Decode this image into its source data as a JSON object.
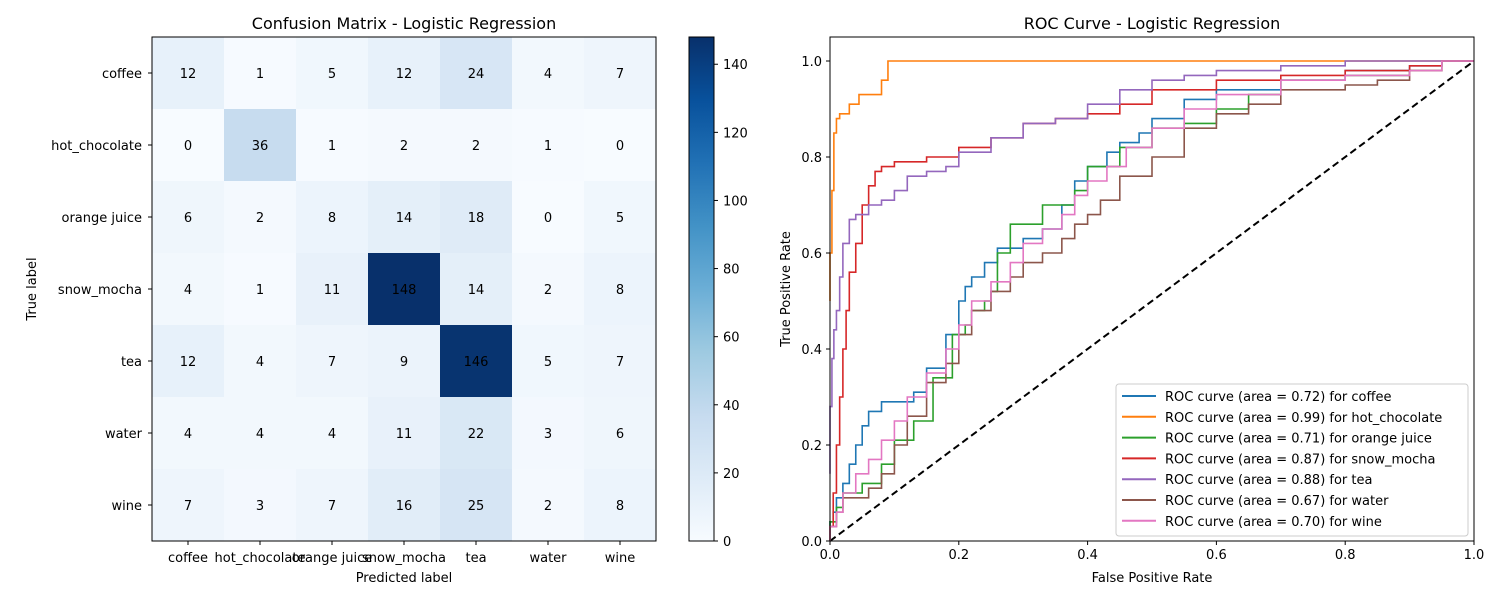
{
  "chart_data": [
    {
      "type": "heatmap",
      "title": "Confusion Matrix - Logistic Regression",
      "xlabel": "Predicted label",
      "ylabel": "True label",
      "x_categories": [
        "coffee",
        "hot_chocolate",
        "orange juice",
        "snow_mocha",
        "tea",
        "water",
        "wine"
      ],
      "y_categories": [
        "coffee",
        "hot_chocolate",
        "orange juice",
        "snow_mocha",
        "tea",
        "water",
        "wine"
      ],
      "matrix": [
        [
          12,
          1,
          5,
          12,
          24,
          4,
          7
        ],
        [
          0,
          36,
          1,
          2,
          2,
          1,
          0
        ],
        [
          6,
          2,
          8,
          14,
          18,
          0,
          5
        ],
        [
          4,
          1,
          11,
          148,
          14,
          2,
          8
        ],
        [
          12,
          4,
          7,
          9,
          146,
          5,
          7
        ],
        [
          4,
          4,
          4,
          11,
          22,
          3,
          6
        ],
        [
          7,
          3,
          7,
          16,
          25,
          2,
          8
        ]
      ],
      "colormap": "Blues",
      "color_range": [
        0,
        148
      ],
      "colorbar_ticks": [
        0,
        20,
        40,
        60,
        80,
        100,
        120,
        140
      ]
    },
    {
      "type": "line",
      "title": "ROC Curve - Logistic Regression",
      "xlabel": "False Positive Rate",
      "ylabel": "True Positive Rate",
      "xlim": [
        0,
        1
      ],
      "ylim": [
        0,
        1.05
      ],
      "x_ticks": [
        "0.0",
        "0.2",
        "0.4",
        "0.6",
        "0.8",
        "1.0"
      ],
      "y_ticks": [
        "0.0",
        "0.2",
        "0.4",
        "0.6",
        "0.8",
        "1.0"
      ],
      "legend_position": "lower-right",
      "diagonal": {
        "style": "dashed",
        "color": "#000000",
        "points": [
          [
            0,
            0
          ],
          [
            1,
            1
          ]
        ]
      },
      "series": [
        {
          "name": "ROC curve (area = 0.72) for coffee",
          "color": "#1f77b4",
          "points": [
            [
              0,
              0
            ],
            [
              0.005,
              0.04
            ],
            [
              0.01,
              0.06
            ],
            [
              0.02,
              0.09
            ],
            [
              0.03,
              0.12
            ],
            [
              0.04,
              0.16
            ],
            [
              0.05,
              0.2
            ],
            [
              0.06,
              0.24
            ],
            [
              0.08,
              0.27
            ],
            [
              0.1,
              0.29
            ],
            [
              0.13,
              0.29
            ],
            [
              0.15,
              0.31
            ],
            [
              0.18,
              0.36
            ],
            [
              0.2,
              0.43
            ],
            [
              0.21,
              0.5
            ],
            [
              0.22,
              0.53
            ],
            [
              0.24,
              0.55
            ],
            [
              0.26,
              0.58
            ],
            [
              0.3,
              0.61
            ],
            [
              0.33,
              0.63
            ],
            [
              0.36,
              0.65
            ],
            [
              0.38,
              0.7
            ],
            [
              0.4,
              0.75
            ],
            [
              0.43,
              0.78
            ],
            [
              0.45,
              0.81
            ],
            [
              0.48,
              0.83
            ],
            [
              0.5,
              0.85
            ],
            [
              0.55,
              0.88
            ],
            [
              0.6,
              0.92
            ],
            [
              0.7,
              0.94
            ],
            [
              0.8,
              0.96
            ],
            [
              0.9,
              0.98
            ],
            [
              0.95,
              0.99
            ],
            [
              1,
              1
            ]
          ]
        },
        {
          "name": "ROC curve (area = 0.99) for hot_chocolate",
          "color": "#ff7f0e",
          "points": [
            [
              0,
              0.5
            ],
            [
              0.003,
              0.6
            ],
            [
              0.006,
              0.73
            ],
            [
              0.01,
              0.85
            ],
            [
              0.015,
              0.88
            ],
            [
              0.03,
              0.89
            ],
            [
              0.045,
              0.91
            ],
            [
              0.05,
              0.93
            ],
            [
              0.08,
              0.93
            ],
            [
              0.09,
              0.96
            ],
            [
              0.1,
              1
            ],
            [
              0.2,
              1
            ],
            [
              0.4,
              1
            ],
            [
              0.6,
              1
            ],
            [
              0.8,
              1
            ],
            [
              1,
              1
            ]
          ]
        },
        {
          "name": "ROC curve (area = 0.71) for orange juice",
          "color": "#2ca02c",
          "points": [
            [
              0,
              0
            ],
            [
              0.01,
              0.04
            ],
            [
              0.02,
              0.07
            ],
            [
              0.03,
              0.1
            ],
            [
              0.05,
              0.1
            ],
            [
              0.08,
              0.12
            ],
            [
              0.1,
              0.16
            ],
            [
              0.13,
              0.21
            ],
            [
              0.16,
              0.25
            ],
            [
              0.19,
              0.34
            ],
            [
              0.21,
              0.43
            ],
            [
              0.22,
              0.45
            ],
            [
              0.24,
              0.48
            ],
            [
              0.25,
              0.5
            ],
            [
              0.26,
              0.52
            ],
            [
              0.28,
              0.6
            ],
            [
              0.3,
              0.66
            ],
            [
              0.33,
              0.66
            ],
            [
              0.35,
              0.7
            ],
            [
              0.38,
              0.7
            ],
            [
              0.4,
              0.73
            ],
            [
              0.45,
              0.78
            ],
            [
              0.5,
              0.82
            ],
            [
              0.55,
              0.86
            ],
            [
              0.6,
              0.87
            ],
            [
              0.65,
              0.9
            ],
            [
              0.7,
              0.93
            ],
            [
              0.8,
              0.96
            ],
            [
              0.9,
              0.97
            ],
            [
              0.95,
              0.98
            ],
            [
              1,
              1
            ]
          ]
        },
        {
          "name": "ROC curve (area = 0.87) for snow_mocha",
          "color": "#d62728",
          "points": [
            [
              0,
              0
            ],
            [
              0.005,
              0.03
            ],
            [
              0.01,
              0.1
            ],
            [
              0.015,
              0.2
            ],
            [
              0.02,
              0.3
            ],
            [
              0.025,
              0.4
            ],
            [
              0.03,
              0.48
            ],
            [
              0.04,
              0.56
            ],
            [
              0.05,
              0.62
            ],
            [
              0.06,
              0.7
            ],
            [
              0.07,
              0.74
            ],
            [
              0.08,
              0.77
            ],
            [
              0.1,
              0.78
            ],
            [
              0.15,
              0.79
            ],
            [
              0.2,
              0.8
            ],
            [
              0.25,
              0.82
            ],
            [
              0.3,
              0.84
            ],
            [
              0.35,
              0.87
            ],
            [
              0.4,
              0.88
            ],
            [
              0.45,
              0.89
            ],
            [
              0.5,
              0.91
            ],
            [
              0.6,
              0.94
            ],
            [
              0.7,
              0.96
            ],
            [
              0.8,
              0.97
            ],
            [
              0.9,
              0.98
            ],
            [
              0.95,
              0.99
            ],
            [
              1,
              1
            ]
          ]
        },
        {
          "name": "ROC curve (area = 0.88) for tea",
          "color": "#9467bd",
          "points": [
            [
              0,
              0.14
            ],
            [
              0.003,
              0.28
            ],
            [
              0.006,
              0.38
            ],
            [
              0.01,
              0.44
            ],
            [
              0.015,
              0.48
            ],
            [
              0.02,
              0.55
            ],
            [
              0.03,
              0.62
            ],
            [
              0.04,
              0.67
            ],
            [
              0.06,
              0.68
            ],
            [
              0.08,
              0.7
            ],
            [
              0.1,
              0.71
            ],
            [
              0.12,
              0.73
            ],
            [
              0.15,
              0.76
            ],
            [
              0.18,
              0.77
            ],
            [
              0.2,
              0.78
            ],
            [
              0.25,
              0.81
            ],
            [
              0.3,
              0.84
            ],
            [
              0.35,
              0.87
            ],
            [
              0.4,
              0.88
            ],
            [
              0.45,
              0.91
            ],
            [
              0.5,
              0.94
            ],
            [
              0.55,
              0.96
            ],
            [
              0.6,
              0.97
            ],
            [
              0.7,
              0.98
            ],
            [
              0.8,
              0.99
            ],
            [
              0.9,
              1
            ],
            [
              1,
              1
            ]
          ]
        },
        {
          "name": "ROC curve (area = 0.67) for water",
          "color": "#8c564b",
          "points": [
            [
              0,
              0
            ],
            [
              0.01,
              0.03
            ],
            [
              0.02,
              0.06
            ],
            [
              0.04,
              0.09
            ],
            [
              0.06,
              0.09
            ],
            [
              0.08,
              0.11
            ],
            [
              0.1,
              0.14
            ],
            [
              0.12,
              0.2
            ],
            [
              0.15,
              0.26
            ],
            [
              0.18,
              0.33
            ],
            [
              0.2,
              0.37
            ],
            [
              0.22,
              0.43
            ],
            [
              0.25,
              0.48
            ],
            [
              0.28,
              0.52
            ],
            [
              0.3,
              0.55
            ],
            [
              0.33,
              0.58
            ],
            [
              0.36,
              0.6
            ],
            [
              0.38,
              0.63
            ],
            [
              0.4,
              0.66
            ],
            [
              0.42,
              0.68
            ],
            [
              0.45,
              0.71
            ],
            [
              0.5,
              0.76
            ],
            [
              0.55,
              0.8
            ],
            [
              0.6,
              0.86
            ],
            [
              0.65,
              0.89
            ],
            [
              0.7,
              0.91
            ],
            [
              0.8,
              0.94
            ],
            [
              0.85,
              0.95
            ],
            [
              0.9,
              0.96
            ],
            [
              0.95,
              0.98
            ],
            [
              1,
              1
            ]
          ]
        },
        {
          "name": "ROC curve (area = 0.70) for wine",
          "color": "#e377c2",
          "points": [
            [
              0,
              0
            ],
            [
              0.01,
              0.03
            ],
            [
              0.02,
              0.06
            ],
            [
              0.04,
              0.1
            ],
            [
              0.06,
              0.14
            ],
            [
              0.08,
              0.17
            ],
            [
              0.1,
              0.21
            ],
            [
              0.12,
              0.25
            ],
            [
              0.15,
              0.3
            ],
            [
              0.18,
              0.35
            ],
            [
              0.2,
              0.4
            ],
            [
              0.22,
              0.45
            ],
            [
              0.25,
              0.5
            ],
            [
              0.28,
              0.54
            ],
            [
              0.3,
              0.58
            ],
            [
              0.33,
              0.62
            ],
            [
              0.36,
              0.65
            ],
            [
              0.38,
              0.68
            ],
            [
              0.4,
              0.72
            ],
            [
              0.43,
              0.75
            ],
            [
              0.46,
              0.78
            ],
            [
              0.5,
              0.82
            ],
            [
              0.55,
              0.86
            ],
            [
              0.6,
              0.9
            ],
            [
              0.7,
              0.93
            ],
            [
              0.8,
              0.96
            ],
            [
              0.9,
              0.97
            ],
            [
              0.95,
              0.98
            ],
            [
              1,
              1
            ]
          ]
        }
      ]
    }
  ]
}
